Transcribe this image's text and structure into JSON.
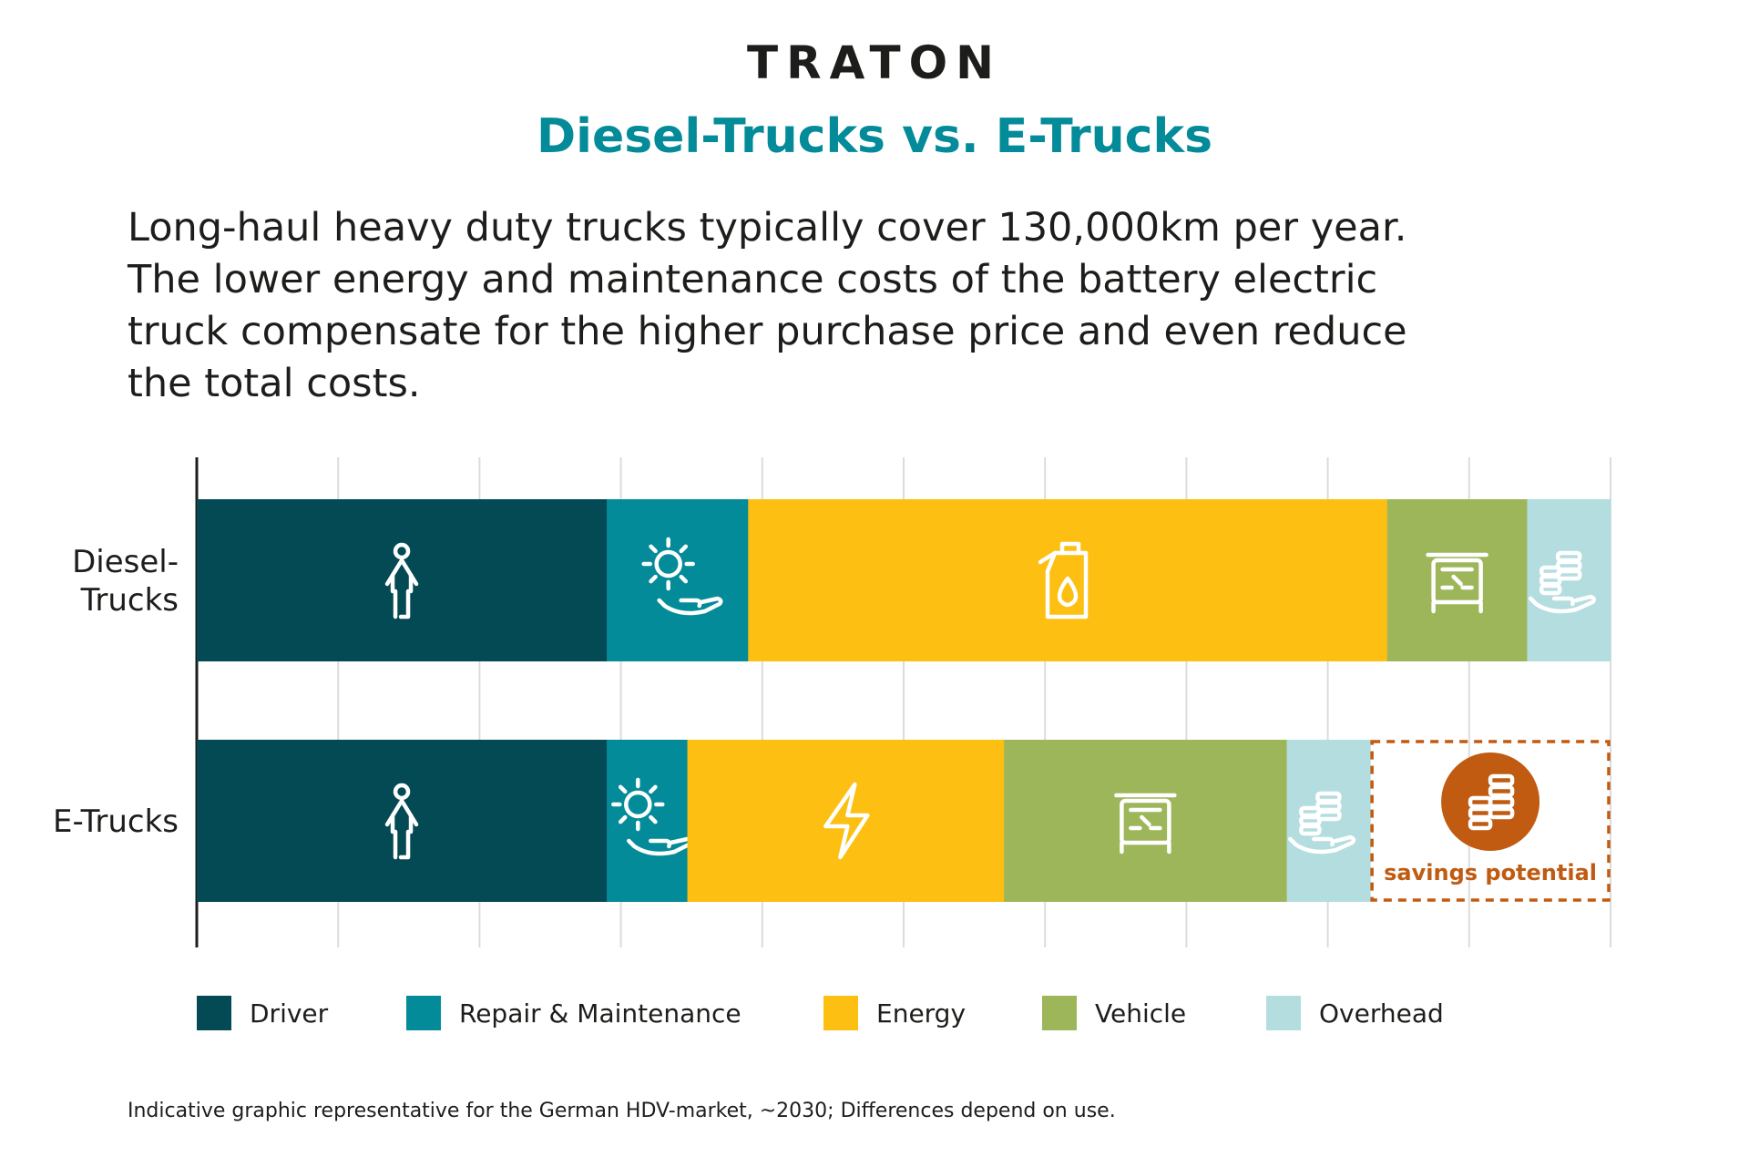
{
  "logo": {
    "text": "TRATON"
  },
  "title": "Diesel-Trucks vs. E-Trucks",
  "intro_lines": [
    "Long-haul heavy duty trucks typically cover 130,000km per year.",
    "The lower energy and maintenance costs of the battery electric",
    "truck compensate for the higher purchase price and even reduce",
    "the total costs."
  ],
  "footnote": "Indicative graphic representative for the German HDV-market, ~2030; Differences depend on use.",
  "colors": {
    "Driver": "#034a55",
    "Repair & Maintenance": "#038b99",
    "Energy": "#fcbf12",
    "Vehicle": "#9db65a",
    "Overhead": "#b4dde0",
    "savings": "#c05b11",
    "axis": "#1d1d1b",
    "grid": "#dcdcdc"
  },
  "chart_data": {
    "type": "bar",
    "orientation": "horizontal",
    "stacked": true,
    "categories": [
      "Diesel-\nTrucks",
      "E-Trucks"
    ],
    "xlim": [
      0,
      10
    ],
    "grid": true,
    "legend_position": "bottom",
    "series": [
      {
        "name": "Driver",
        "values": [
          2.9,
          2.9
        ],
        "icons": [
          "driver-icon",
          "driver-icon"
        ]
      },
      {
        "name": "Repair & Maintenance",
        "values": [
          1.0,
          0.57
        ],
        "icons": [
          "gear-hand-icon",
          "gear-hand-icon"
        ]
      },
      {
        "name": "Energy",
        "values": [
          4.52,
          2.24
        ],
        "icons": [
          "fuel-can-icon",
          "lightning-icon"
        ]
      },
      {
        "name": "Vehicle",
        "values": [
          0.99,
          2.0
        ],
        "icons": [
          "truck-icon",
          "truck-icon"
        ]
      },
      {
        "name": "Overhead",
        "values": [
          0.59,
          0.59
        ],
        "icons": [
          "coins-hand-icon",
          "coins-hand-icon"
        ]
      }
    ],
    "annotations": [
      {
        "bar": "E-Trucks",
        "label": "savings potential",
        "from": 8.3,
        "to": 10.0,
        "icon": "coins-icon"
      }
    ]
  }
}
